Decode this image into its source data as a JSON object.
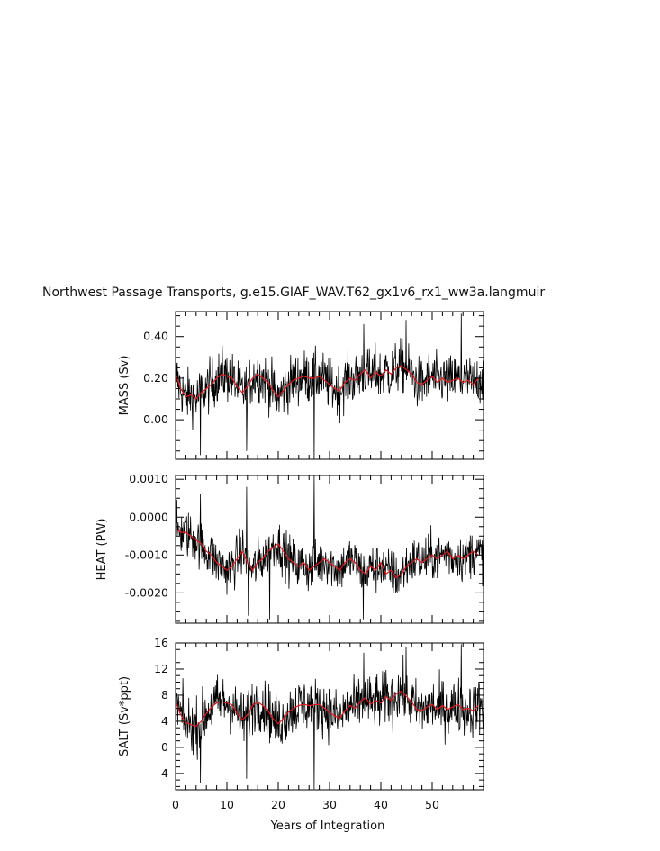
{
  "title": "Northwest Passage Transports, g.e15.GIAF_WAV.T62_gx1v6_rx1_ww3a.langmuir",
  "colors": {
    "raw": "#000000",
    "smooth": "#e41a1c",
    "axis": "#000000",
    "background": "#ffffff"
  },
  "chart_data": {
    "type": "line",
    "x_axis": {
      "label": "Years of Integration",
      "range": [
        0,
        60
      ],
      "ticks": [
        0,
        10,
        20,
        30,
        40,
        50
      ],
      "tick_labels": [
        "0",
        "10",
        "20",
        "30",
        "40",
        "50"
      ]
    },
    "series_style": {
      "raw": "black monthly series",
      "smooth": "red running mean"
    },
    "panels": [
      {
        "ylabel": "MASS (Sv)",
        "ylim": [
          -0.19,
          0.52
        ],
        "yticks": [
          0.0,
          0.2,
          0.4
        ],
        "ytick_labels": [
          "0.00",
          "0.20",
          "0.40"
        ],
        "smooth_years": [
          0,
          1,
          2,
          3,
          4,
          5,
          6,
          7,
          8,
          9,
          10,
          11,
          12,
          13,
          14,
          15,
          16,
          17,
          18,
          19,
          20,
          21,
          22,
          23,
          24,
          25,
          26,
          27,
          28,
          29,
          30,
          31,
          32,
          33,
          34,
          35,
          36,
          37,
          38,
          39,
          40,
          41,
          42,
          43,
          44,
          45,
          46,
          47,
          48,
          49,
          50,
          51,
          52,
          53,
          54,
          55,
          56,
          57,
          58,
          59
        ],
        "smooth_values": [
          0.22,
          0.15,
          0.11,
          0.12,
          0.1,
          0.13,
          0.15,
          0.17,
          0.2,
          0.22,
          0.21,
          0.2,
          0.16,
          0.13,
          0.16,
          0.2,
          0.22,
          0.2,
          0.18,
          0.14,
          0.11,
          0.14,
          0.17,
          0.19,
          0.2,
          0.21,
          0.2,
          0.2,
          0.21,
          0.19,
          0.17,
          0.15,
          0.14,
          0.18,
          0.2,
          0.19,
          0.22,
          0.24,
          0.2,
          0.23,
          0.21,
          0.24,
          0.22,
          0.25,
          0.26,
          0.24,
          0.22,
          0.18,
          0.17,
          0.19,
          0.21,
          0.18,
          0.2,
          0.18,
          0.19,
          0.2,
          0.18,
          0.19,
          0.17,
          0.2
        ],
        "raw_spread": 0.09,
        "extremes": [
          {
            "x": 4.8,
            "y": -0.17
          },
          {
            "x": 13.8,
            "y": -0.15
          },
          {
            "x": 27.0,
            "y": -0.2
          },
          {
            "x": 36.7,
            "y": 0.46
          },
          {
            "x": 44.9,
            "y": 0.48
          },
          {
            "x": 55.7,
            "y": 0.51
          }
        ]
      },
      {
        "ylabel": "HEAT (PW)",
        "ylim": [
          -0.0028,
          0.0011
        ],
        "yticks": [
          -0.002,
          -0.001,
          0.0,
          0.001
        ],
        "ytick_labels": [
          "-0.0020",
          "-0.0010",
          "0.0000",
          "0.0010"
        ],
        "smooth_years": [
          0,
          1,
          2,
          3,
          4,
          5,
          6,
          7,
          8,
          9,
          10,
          11,
          12,
          13,
          14,
          15,
          16,
          17,
          18,
          19,
          20,
          21,
          22,
          23,
          24,
          25,
          26,
          27,
          28,
          29,
          30,
          31,
          32,
          33,
          34,
          35,
          36,
          37,
          38,
          39,
          40,
          41,
          42,
          43,
          44,
          45,
          46,
          47,
          48,
          49,
          50,
          51,
          52,
          53,
          54,
          55,
          56,
          57,
          58,
          59
        ],
        "smooth_values": [
          -0.0003,
          -0.0004,
          -0.0004,
          -0.0005,
          -0.0006,
          -0.0007,
          -0.0009,
          -0.001,
          -0.0012,
          -0.0013,
          -0.0014,
          -0.0013,
          -0.0011,
          -0.0009,
          -0.0012,
          -0.0014,
          -0.0012,
          -0.0011,
          -0.0009,
          -0.0008,
          -0.0007,
          -0.0009,
          -0.0011,
          -0.0012,
          -0.0013,
          -0.0012,
          -0.0014,
          -0.0013,
          -0.0012,
          -0.0011,
          -0.0012,
          -0.0013,
          -0.0014,
          -0.0012,
          -0.0011,
          -0.0012,
          -0.0014,
          -0.0015,
          -0.0013,
          -0.0014,
          -0.0012,
          -0.0015,
          -0.0014,
          -0.0016,
          -0.0015,
          -0.0013,
          -0.0012,
          -0.0011,
          -0.0012,
          -0.0011,
          -0.001,
          -0.0011,
          -0.001,
          -0.0009,
          -0.0011,
          -0.001,
          -0.0011,
          -0.001,
          -0.0009,
          -0.001
        ],
        "raw_spread": 0.00045,
        "extremes": [
          {
            "x": 4.8,
            "y": 0.0006
          },
          {
            "x": 13.8,
            "y": 0.0008
          },
          {
            "x": 27.0,
            "y": 0.0011
          },
          {
            "x": 14.2,
            "y": -0.0026
          },
          {
            "x": 18.3,
            "y": -0.0027
          },
          {
            "x": 36.6,
            "y": -0.0027
          }
        ]
      },
      {
        "ylabel": "SALT (Sv*ppt)",
        "ylim": [
          -6.5,
          16.0
        ],
        "yticks": [
          -4,
          0,
          4,
          8,
          12,
          16
        ],
        "ytick_labels": [
          "-4",
          "0",
          "4",
          "8",
          "12",
          "16"
        ],
        "smooth_years": [
          0,
          1,
          2,
          3,
          4,
          5,
          6,
          7,
          8,
          9,
          10,
          11,
          12,
          13,
          14,
          15,
          16,
          17,
          18,
          19,
          20,
          21,
          22,
          23,
          24,
          25,
          26,
          27,
          28,
          29,
          30,
          31,
          32,
          33,
          34,
          35,
          36,
          37,
          38,
          39,
          40,
          41,
          42,
          43,
          44,
          45,
          46,
          47,
          48,
          49,
          50,
          51,
          52,
          53,
          54,
          55,
          56,
          57,
          58,
          59
        ],
        "smooth_values": [
          7.0,
          5.0,
          3.8,
          3.5,
          3.2,
          4.0,
          5.2,
          6.2,
          6.8,
          7.0,
          6.8,
          6.5,
          5.2,
          4.2,
          5.0,
          6.4,
          7.0,
          6.4,
          5.6,
          4.4,
          3.6,
          4.4,
          5.4,
          6.0,
          6.4,
          6.6,
          6.4,
          6.5,
          6.6,
          6.0,
          5.4,
          4.8,
          4.5,
          5.6,
          6.4,
          6.0,
          7.0,
          7.6,
          6.6,
          7.2,
          6.8,
          7.8,
          7.2,
          8.2,
          8.6,
          7.8,
          7.0,
          5.8,
          5.6,
          6.2,
          6.6,
          5.8,
          6.4,
          5.8,
          6.2,
          6.6,
          5.8,
          6.0,
          5.6,
          6.4
        ],
        "raw_spread": 3.0,
        "extremes": [
          {
            "x": 4.8,
            "y": -5.4
          },
          {
            "x": 13.8,
            "y": -4.8
          },
          {
            "x": 27.0,
            "y": -6.4
          },
          {
            "x": 36.7,
            "y": 14.5
          },
          {
            "x": 44.9,
            "y": 15.4
          },
          {
            "x": 55.7,
            "y": 15.8
          }
        ]
      }
    ],
    "grid": false,
    "legend": "none"
  }
}
